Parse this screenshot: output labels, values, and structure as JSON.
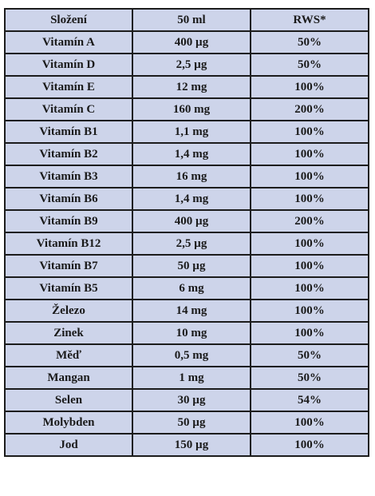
{
  "table": {
    "headers": [
      "Složení",
      "50 ml",
      "RWS*"
    ],
    "rows": [
      [
        "Vitamín A",
        "400 µg",
        "50%"
      ],
      [
        "Vitamín D",
        "2,5 µg",
        "50%"
      ],
      [
        "Vitamín E",
        "12 mg",
        "100%"
      ],
      [
        "Vitamín C",
        "160 mg",
        "200%"
      ],
      [
        "Vitamín B1",
        "1,1 mg",
        "100%"
      ],
      [
        "Vitamín B2",
        "1,4 mg",
        "100%"
      ],
      [
        "Vitamín B3",
        "16 mg",
        "100%"
      ],
      [
        "Vitamín B6",
        "1,4 mg",
        "100%"
      ],
      [
        "Vitamín B9",
        "400 µg",
        "200%"
      ],
      [
        "Vitamín B12",
        "2,5 µg",
        "100%"
      ],
      [
        "Vitamín B7",
        "50 µg",
        "100%"
      ],
      [
        "Vitamín B5",
        "6 mg",
        "100%"
      ],
      [
        "Železo",
        "14 mg",
        "100%"
      ],
      [
        "Zinek",
        "10 mg",
        "100%"
      ],
      [
        "Měď",
        "0,5 mg",
        "50%"
      ],
      [
        "Mangan",
        "1 mg",
        "50%"
      ],
      [
        "Selen",
        "30 µg",
        "54%"
      ],
      [
        "Molybden",
        "50 µg",
        "100%"
      ],
      [
        "Jod",
        "150 µg",
        "100%"
      ]
    ]
  },
  "colors": {
    "cell_background": "#cdd4ea",
    "border": "#1c1c1c",
    "text": "#1a1a1a"
  }
}
